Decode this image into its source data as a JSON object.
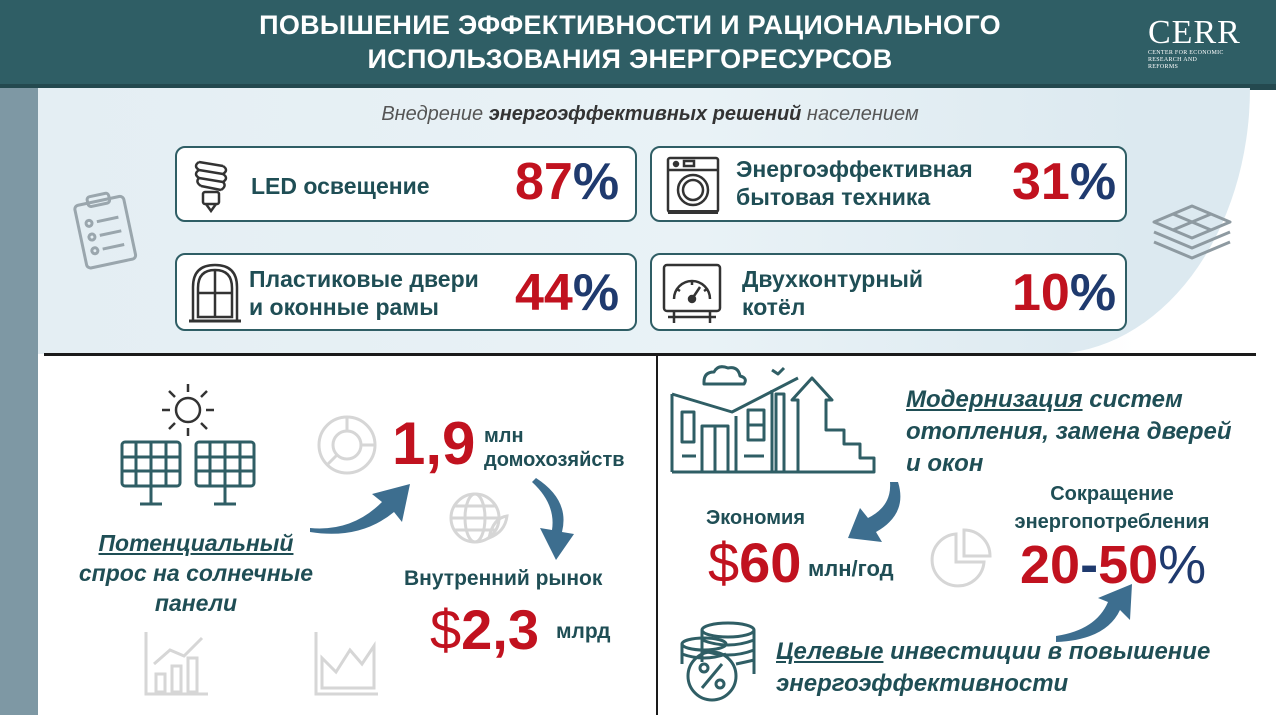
{
  "header": {
    "title_line1": "ПОВЫШЕНИЕ ЭФФЕКТИВНОСТИ И РАЦИОНАЛЬНОГО",
    "title_line2": "ИСПОЛЬЗОВАНИЯ ЭНЕРГОРЕСУРСОВ",
    "logo": "CERR",
    "logo_sub_line1": "CENTER FOR ECONOMIC",
    "logo_sub_line2": "RESEARCH AND REFORMS"
  },
  "adoption": {
    "subtitle_pre": "Внедрение ",
    "subtitle_bold": "энергоэффективных решений",
    "subtitle_post": " населением",
    "cards": [
      {
        "label_line1": "LED освещение",
        "label_line2": "",
        "value": "87",
        "unit": "%",
        "icon": "led-bulb-icon"
      },
      {
        "label_line1": "Энергоэффективная",
        "label_line2": "бытовая техника",
        "value": "31",
        "unit": "%",
        "icon": "washing-machine-icon"
      },
      {
        "label_line1": "Пластиковые двери",
        "label_line2": "и оконные рамы",
        "value": "44",
        "unit": "%",
        "icon": "window-icon"
      },
      {
        "label_line1": "Двухконтурный",
        "label_line2": "котёл",
        "value": "10",
        "unit": "%",
        "icon": "boiler-icon"
      }
    ]
  },
  "solar": {
    "caption_line1": "Потенциальный",
    "caption_line2": "спрос на солнечные",
    "caption_line3": "панели",
    "households_value": "1,9",
    "households_unit_line1": "млн",
    "households_unit_line2": "домохозяйств",
    "market_label": "Внутренний рынок",
    "market_currency": "$",
    "market_value": "2,3",
    "market_unit": "млрд"
  },
  "modernization": {
    "title_underlined": "Модернизация",
    "title_rest_line1": " систем",
    "title_line2": "отопления, замена дверей",
    "title_line3": "и окон",
    "savings_label": "Экономия",
    "savings_currency": "$",
    "savings_value": "60",
    "savings_unit": "млн/год",
    "reduction_label_line1": "Сокращение",
    "reduction_label_line2": "энергопотребления",
    "reduction_from": "20",
    "reduction_dash": "-",
    "reduction_to": "50",
    "reduction_unit": "%",
    "investment_underlined": "Целевые",
    "investment_rest_line1": " инвестиции в повышение",
    "investment_line2": "энергоэффективности"
  },
  "colors": {
    "header": "#2f5e65",
    "accent_red": "#c1121f",
    "accent_blue": "#1f3a6e",
    "teal_text": "#1f4e55",
    "arrow": "#3d6e8f"
  }
}
